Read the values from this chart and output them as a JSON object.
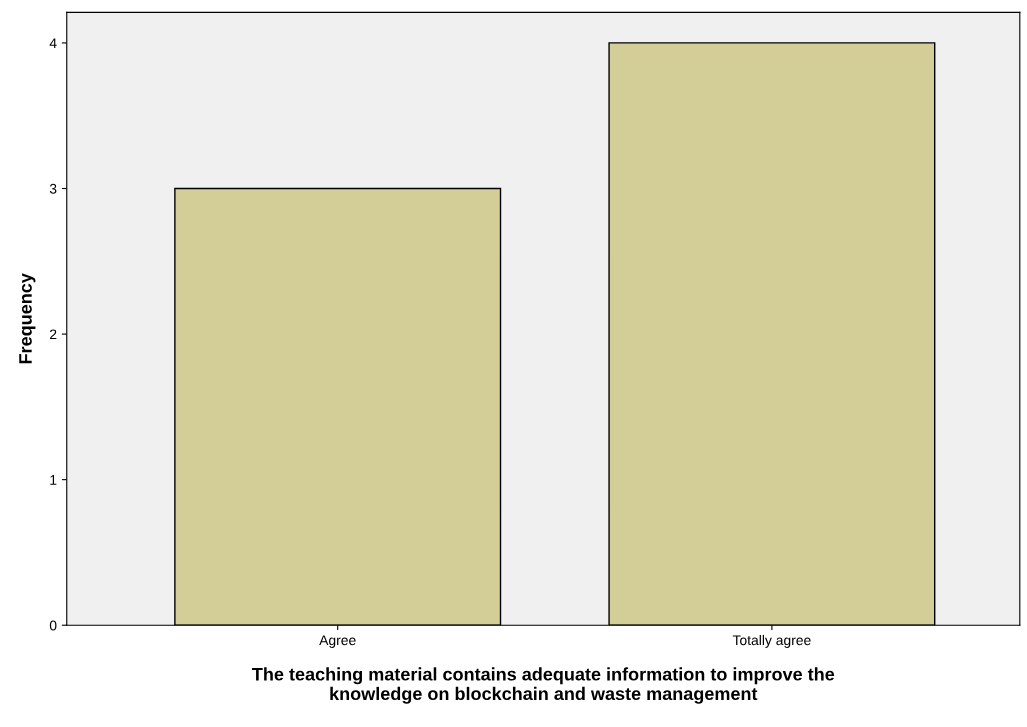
{
  "chart_data": {
    "type": "bar",
    "xlabel": "The teaching material contains adequate information to improve the\nknowledge on blockchain and waste management",
    "ylabel": "Frequency",
    "categories": [
      "Agree",
      "Totally agree"
    ],
    "values": [
      3,
      4
    ],
    "color": "#d3ce98",
    "ylim": [
      0,
      4.21
    ],
    "yticks": [
      0,
      1,
      2,
      3,
      4
    ],
    "grid": false
  }
}
